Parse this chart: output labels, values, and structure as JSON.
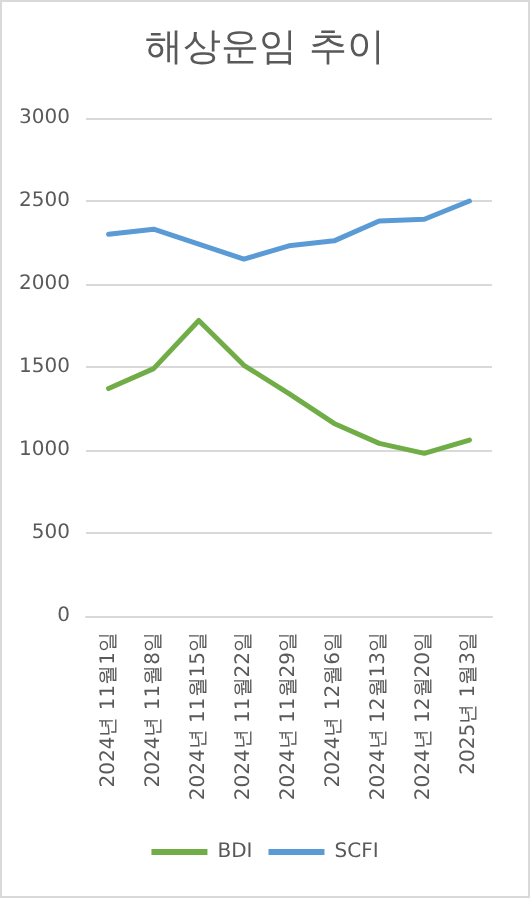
{
  "chart_data": {
    "type": "line",
    "title": "해상운임 추이",
    "categories": [
      "2024년 11월1일",
      "2024년 11월8일",
      "2024년 11월15일",
      "2024년 11월22일",
      "2024년 11월29일",
      "2024년 12월6일",
      "2024년 12월13일",
      "2024년 12월20일",
      "2025년 1월3일"
    ],
    "series": [
      {
        "name": "BDI",
        "color": "#70ad47",
        "values": [
          1370,
          1490,
          1780,
          1510,
          1340,
          1160,
          1040,
          980,
          1060
        ]
      },
      {
        "name": "SCFI",
        "color": "#5b9bd5",
        "values": [
          2300,
          2330,
          2240,
          2150,
          2230,
          2260,
          2380,
          2390,
          2500
        ]
      }
    ],
    "ylim": [
      0,
      3000
    ],
    "yticks": [
      0,
      500,
      1000,
      1500,
      2000,
      2500,
      3000
    ],
    "grid": "y",
    "legend": "bottom",
    "marker": "none",
    "line_style": "solid"
  }
}
